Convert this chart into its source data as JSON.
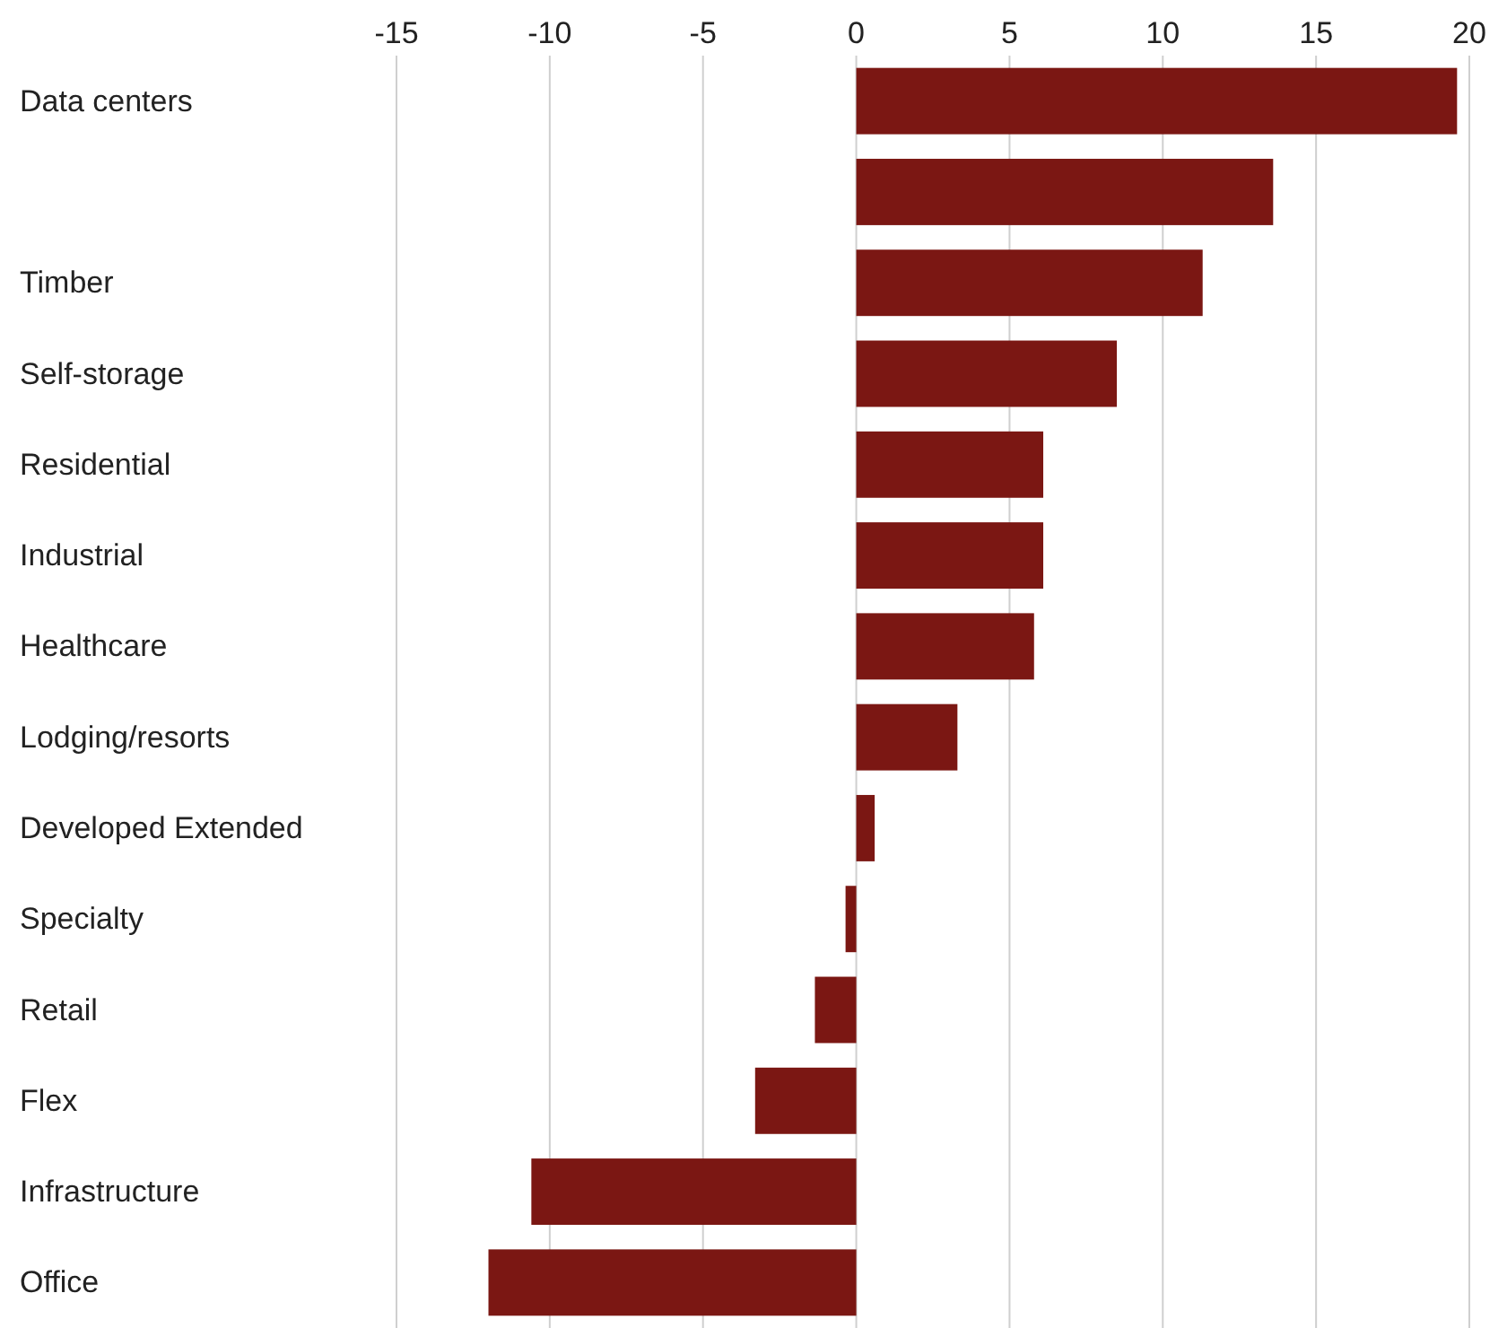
{
  "chart_data": {
    "type": "bar",
    "orientation": "horizontal",
    "categories": [
      "Data centers",
      null,
      "Timber",
      "Self-storage",
      "Residential",
      "Industrial",
      "Healthcare",
      "Lodging/resorts",
      "Developed Extended",
      "Specialty",
      "Retail",
      "Flex",
      "Infrastructure",
      "Office"
    ],
    "values": [
      19.6,
      13.6,
      11.3,
      8.5,
      6.1,
      6.1,
      5.8,
      3.3,
      0.6,
      -0.35,
      -1.35,
      -3.3,
      -10.6,
      -12.0
    ],
    "color": "#7b1713",
    "xlim": [
      -15,
      20
    ],
    "xticks": [
      -15,
      -10,
      -5,
      0,
      5,
      10,
      15,
      20
    ],
    "grid": "x"
  }
}
